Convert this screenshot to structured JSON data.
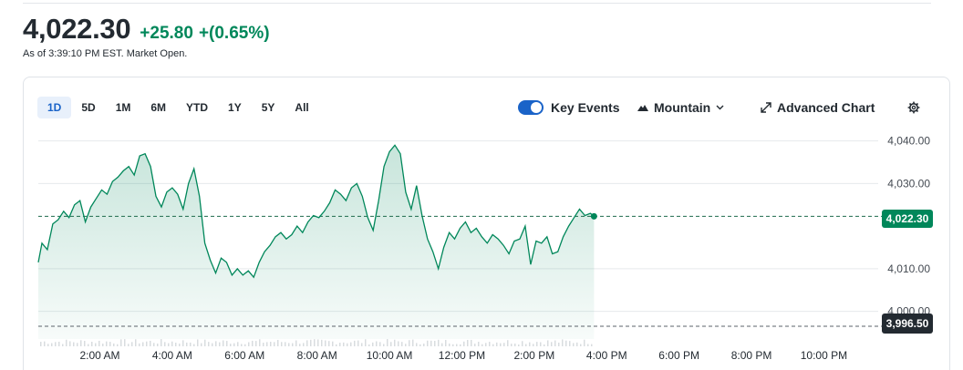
{
  "quote": {
    "price": "4,022.30",
    "change": "+25.80",
    "change_pct": "+(0.65%)",
    "as_of": "As of 3:39:10 PM EST. Market Open."
  },
  "ranges": [
    {
      "label": "1D",
      "active": true
    },
    {
      "label": "5D",
      "active": false
    },
    {
      "label": "1M",
      "active": false
    },
    {
      "label": "6M",
      "active": false
    },
    {
      "label": "YTD",
      "active": false
    },
    {
      "label": "1Y",
      "active": false
    },
    {
      "label": "5Y",
      "active": false
    },
    {
      "label": "All",
      "active": false
    }
  ],
  "toolbar": {
    "key_events_label": "Key Events",
    "key_events_on": true,
    "chart_type_label": "Mountain",
    "advanced_label": "Advanced Chart"
  },
  "colors": {
    "up": "#00875a",
    "accent": "#1a63c8",
    "prev_close_tag": "#232a31"
  },
  "chart_data": {
    "type": "area",
    "x_tick_labels": [
      "2:00 AM",
      "4:00 AM",
      "6:00 AM",
      "8:00 AM",
      "10:00 AM",
      "12:00 PM",
      "2:00 PM",
      "4:00 PM",
      "6:00 PM",
      "8:00 PM",
      "10:00 PM"
    ],
    "y_tick_labels": [
      "4,040.00",
      "4,030.00",
      "4,010.00",
      "4,000.00"
    ],
    "y_ticks": [
      4040,
      4030,
      4010,
      4000
    ],
    "ylim": [
      3993.5,
      4041
    ],
    "x_domain_hours": [
      0.3,
      23.5
    ],
    "grid": true,
    "current_price": 4022.3,
    "current_price_label": "4,022.30",
    "previous_close": 3996.5,
    "previous_close_label": "3,996.50",
    "series": [
      {
        "x_hours": [
          0.3,
          0.4,
          0.55,
          0.7,
          0.85,
          1.0,
          1.15,
          1.3,
          1.45,
          1.6,
          1.75,
          1.9,
          2.05,
          2.2,
          2.35,
          2.5,
          2.65,
          2.8,
          2.95,
          3.1,
          3.25,
          3.4,
          3.55,
          3.7,
          3.85,
          4.0,
          4.15,
          4.3,
          4.45,
          4.6,
          4.75,
          4.9,
          5.05,
          5.2,
          5.35,
          5.5,
          5.65,
          5.8,
          5.95,
          6.1,
          6.25,
          6.4,
          6.55,
          6.7,
          6.85,
          7.0,
          7.15,
          7.3,
          7.45,
          7.6,
          7.75,
          7.9,
          8.05,
          8.2,
          8.35,
          8.5,
          8.65,
          8.8,
          8.95,
          9.1,
          9.25,
          9.4,
          9.55,
          9.7,
          9.85,
          10.0,
          10.15,
          10.3,
          10.45,
          10.6,
          10.75,
          10.9,
          11.05,
          11.2,
          11.35,
          11.5,
          11.65,
          11.8,
          11.95,
          12.1,
          12.25,
          12.4,
          12.55,
          12.7,
          12.85,
          13.0,
          13.15,
          13.3,
          13.45,
          13.6,
          13.75,
          13.9,
          14.05,
          14.2,
          14.35,
          14.5,
          14.65,
          14.8,
          14.95,
          15.1,
          15.25,
          15.4,
          15.55,
          15.65
        ],
        "values": [
          4011.5,
          4016.0,
          4014.5,
          4020.5,
          4021.5,
          4023.5,
          4022.0,
          4025.0,
          4026.0,
          4021.0,
          4024.5,
          4026.5,
          4028.5,
          4027.5,
          4030.5,
          4031.5,
          4033.0,
          4034.0,
          4032.0,
          4036.5,
          4037.0,
          4034.0,
          4027.0,
          4024.5,
          4028.0,
          4029.0,
          4027.5,
          4024.0,
          4030.0,
          4033.5,
          4027.0,
          4016.0,
          4012.0,
          4009.0,
          4012.5,
          4011.5,
          4008.5,
          4010.0,
          4008.5,
          4009.5,
          4008.0,
          4011.5,
          4014.0,
          4015.5,
          4017.5,
          4018.5,
          4017.0,
          4018.0,
          4020.0,
          4018.5,
          4021.0,
          4022.5,
          4022.0,
          4023.5,
          4025.5,
          4028.5,
          4027.5,
          4026.0,
          4029.0,
          4030.0,
          4027.0,
          4022.0,
          4019.0,
          4026.0,
          4034.0,
          4037.5,
          4039.0,
          4037.0,
          4028.0,
          4024.0,
          4029.5,
          4022.5,
          4017.0,
          4014.0,
          4010.0,
          4015.0,
          4018.5,
          4017.0,
          4019.5,
          4021.0,
          4018.5,
          4019.5,
          4017.5,
          4016.0,
          4018.0,
          4017.0,
          4015.5,
          4013.5,
          4016.5,
          4017.0,
          4020.0,
          4011.0,
          4016.5,
          4016.0,
          4017.5,
          4013.5,
          4014.0,
          4017.5,
          4020.0,
          4022.0,
          4024.0,
          4022.5,
          4023.0,
          4022.3
        ]
      }
    ],
    "volume_baseline": true
  }
}
